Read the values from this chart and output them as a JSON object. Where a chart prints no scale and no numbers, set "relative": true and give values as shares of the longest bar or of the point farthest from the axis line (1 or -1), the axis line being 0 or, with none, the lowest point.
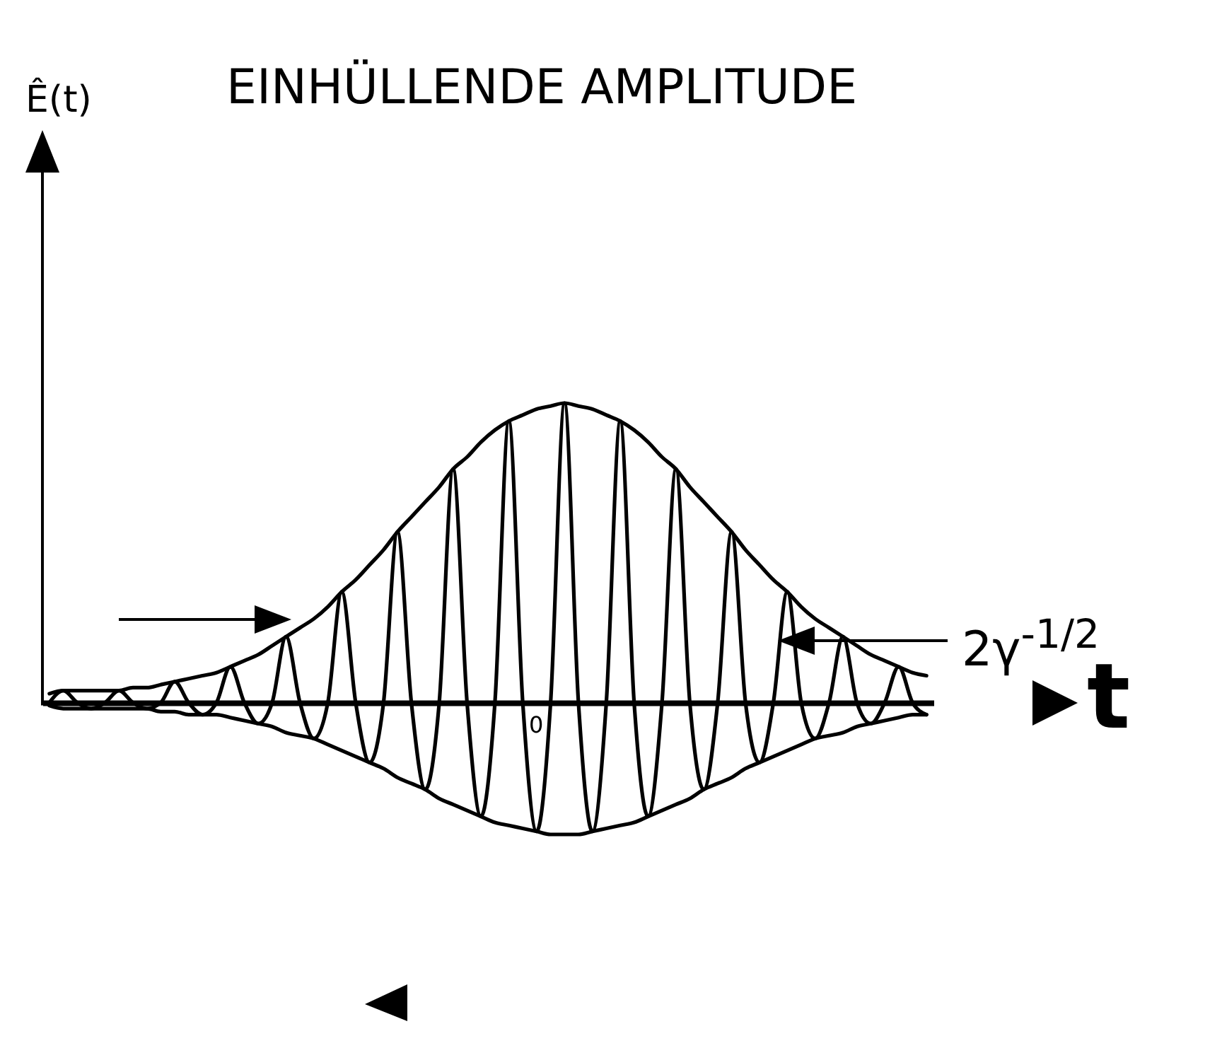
{
  "chart_data": {
    "type": "line",
    "relative": true,
    "title": "EINHÜLLENDE AMPLITUDE",
    "xlabel": "t",
    "annotations": [
      "Ê(t)",
      "0",
      "2γ$^{-1/2}$"
    ],
    "categories": [
      null,
      null,
      null,
      null,
      null,
      null,
      null,
      null,
      null,
      null,
      null,
      null,
      null,
      null,
      null,
      null,
      null,
      null,
      null,
      null,
      null,
      null,
      null,
      null,
      null,
      null,
      null,
      null,
      null,
      null,
      null,
      null,
      null,
      null,
      null,
      null,
      null,
      null,
      null,
      null,
      null,
      null,
      null,
      null,
      null,
      null,
      null,
      null,
      null,
      null,
      null,
      null,
      null,
      null,
      null,
      null,
      null,
      null,
      null,
      null,
      null,
      null,
      null,
      null
    ],
    "series": [
      {
        "color": "#000000",
        "values": [
          0.03,
          0.04,
          0.04,
          0.04,
          0.04,
          0.04,
          0.05,
          0.05,
          0.06,
          0.07,
          0.08,
          0.09,
          0.1,
          0.12,
          0.14,
          0.16,
          0.19,
          0.22,
          0.25,
          0.28,
          0.32,
          0.37,
          0.41,
          0.46,
          0.51,
          0.57,
          0.62,
          0.67,
          0.72,
          0.78,
          0.82,
          0.87,
          0.91,
          0.94,
          0.96,
          0.98,
          0.99,
          1,
          0.99,
          0.98,
          0.96,
          0.94,
          0.91,
          0.87,
          0.82,
          0.78,
          0.72,
          0.67,
          0.62,
          0.57,
          0.51,
          0.46,
          0.41,
          0.37,
          0.32,
          0.28,
          0.25,
          0.22,
          0.19,
          0.16,
          0.14,
          0.12,
          0.1,
          0.09
        ]
      },
      {
        "color": "#000000",
        "values": [
          -0.01,
          -0.02,
          -0.02,
          -0.02,
          -0.02,
          -0.02,
          -0.02,
          -0.02,
          -0.03,
          -0.03,
          -0.04,
          -0.04,
          -0.04,
          -0.05,
          -0.06,
          -0.07,
          -0.08,
          -0.1,
          -0.11,
          -0.12,
          -0.14,
          -0.16,
          -0.18,
          -0.2,
          -0.22,
          -0.25,
          -0.27,
          -0.29,
          -0.32,
          -0.34,
          -0.36,
          -0.38,
          -0.4,
          -0.41,
          -0.42,
          -0.43,
          -0.44,
          -0.44,
          -0.44,
          -0.43,
          -0.42,
          -0.41,
          -0.4,
          -0.38,
          -0.36,
          -0.34,
          -0.32,
          -0.29,
          -0.27,
          -0.25,
          -0.22,
          -0.2,
          -0.18,
          -0.16,
          -0.14,
          -0.12,
          -0.11,
          -0.1,
          -0.08,
          -0.07,
          -0.06,
          -0.05,
          -0.04,
          -0.04
        ]
      },
      {
        "color": "#000000",
        "values": [
          0,
          0.04,
          0,
          -0.02,
          0,
          0.04,
          0,
          -0.02,
          0,
          0.07,
          0,
          -0.04,
          0,
          0.12,
          0,
          -0.07,
          0,
          0.22,
          0,
          -0.12,
          0,
          0.37,
          0,
          -0.2,
          0,
          0.57,
          0,
          -0.29,
          0,
          0.78,
          0,
          -0.38,
          0,
          0.94,
          0,
          -0.43,
          0,
          1,
          0,
          -0.43,
          0,
          0.94,
          0,
          -0.38,
          0,
          0.78,
          0,
          -0.29,
          0,
          0.57,
          0,
          -0.2,
          0,
          0.37,
          0,
          -0.12,
          0,
          0.22,
          0,
          -0.07,
          0,
          0.12,
          0,
          -0.04
        ]
      }
    ]
  }
}
